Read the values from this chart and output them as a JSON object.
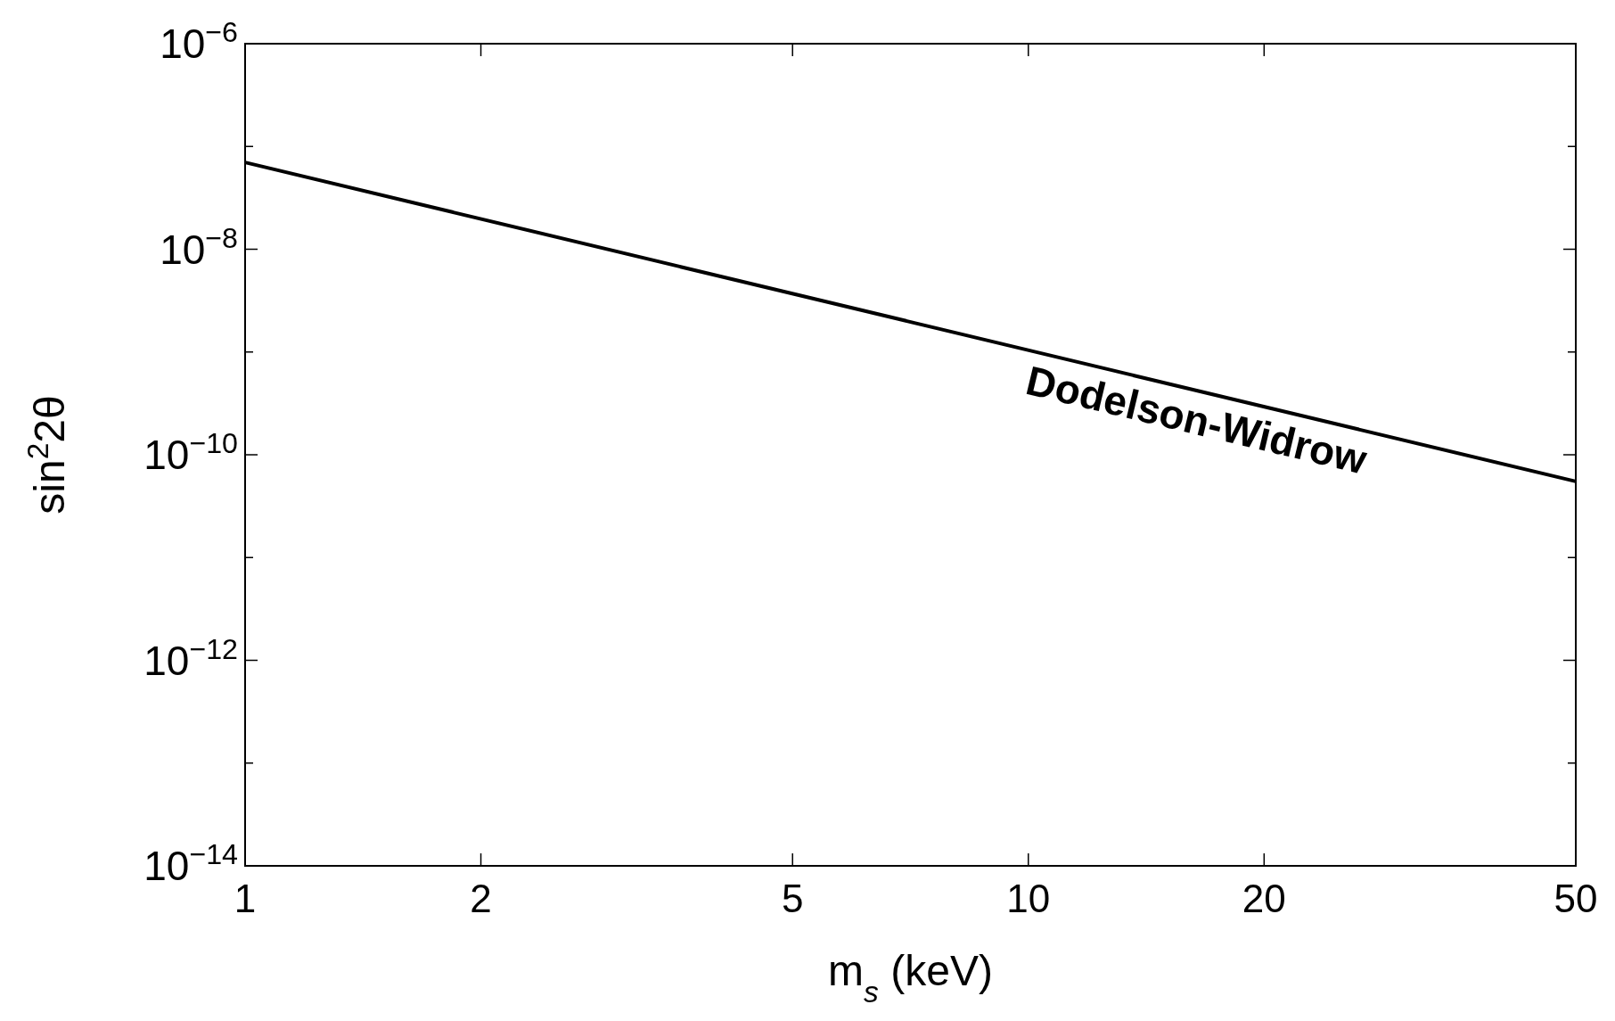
{
  "chart_data": {
    "type": "line",
    "xlabel": "m$_{s}$ (keV)",
    "ylabel": "sin$^{2}$2θ",
    "x": [
      1,
      50
    ],
    "series": [
      {
        "name": "Dodelson-Widrow",
        "color": "#000000",
        "values": [
          7e-08,
          5.5e-11
        ]
      }
    ],
    "log": "xy",
    "xlim": [
      1,
      50
    ],
    "ylim": [
      1e-14,
      1e-06
    ],
    "xticks": [
      1,
      2,
      5,
      10,
      20,
      50
    ],
    "yticks": [
      {
        "value": 1e-14,
        "label": "10$^{−14}$"
      },
      {
        "value": 1e-13,
        "label": null
      },
      {
        "value": 1e-12,
        "label": "10$^{−12}$"
      },
      {
        "value": 1e-11,
        "label": null
      },
      {
        "value": 1e-10,
        "label": "10$^{−10}$"
      },
      {
        "value": 1e-09,
        "label": null
      },
      {
        "value": 1e-08,
        "label": "10$^{−8}$"
      },
      {
        "value": 1e-07,
        "label": null
      },
      {
        "value": 1e-06,
        "label": "10$^{−6}$"
      }
    ],
    "grid": false,
    "marker": "none",
    "line_style": "solid"
  }
}
